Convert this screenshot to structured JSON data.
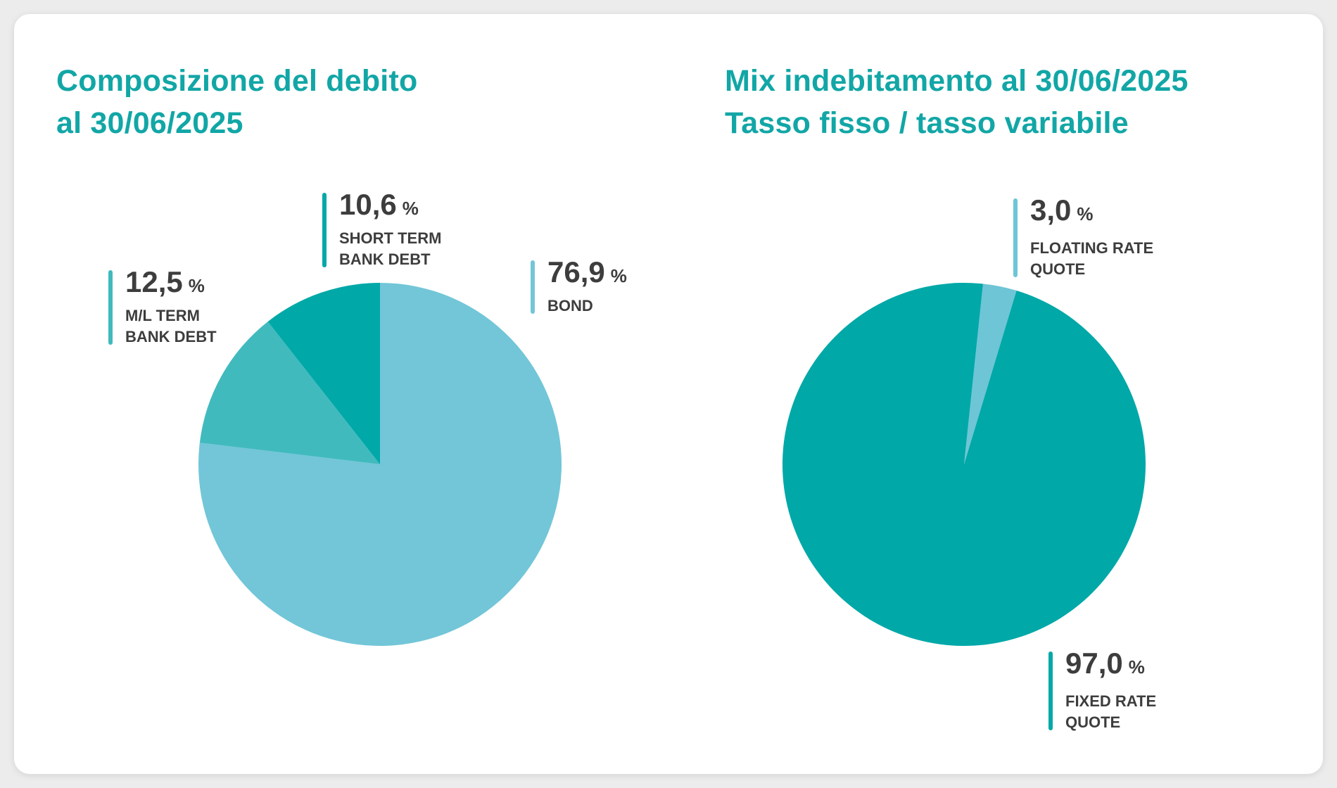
{
  "colors": {
    "background": "#ffffff",
    "title": "#12a6a6",
    "text": "#3d3d3d",
    "bond": "#72c6d8",
    "ml_term": "#41babe",
    "short_term": "#00a8a8",
    "fixed": "#00a8a8",
    "floating": "#6ec5d6"
  },
  "chart_data": [
    {
      "type": "pie",
      "title": [
        "Composizione del debito",
        "al 30/06/2025"
      ],
      "unit": "%",
      "slices": [
        {
          "label": [
            "BOND"
          ],
          "value": 76.9,
          "value_text": "76,9",
          "color": "#72c6d8"
        },
        {
          "label": [
            "M/L TERM",
            "BANK DEBT"
          ],
          "value": 12.5,
          "value_text": "12,5",
          "color": "#41babe"
        },
        {
          "label": [
            "SHORT TERM",
            "BANK DEBT"
          ],
          "value": 10.6,
          "value_text": "10,6",
          "color": "#00a8a8"
        }
      ]
    },
    {
      "type": "pie",
      "title": [
        "Mix indebitamento al 30/06/2025",
        "Tasso fisso / tasso variabile"
      ],
      "unit": "%",
      "slices": [
        {
          "label": [
            "FLOATING RATE",
            "QUOTE"
          ],
          "value": 3.0,
          "value_text": "3,0",
          "color": "#6ec5d6"
        },
        {
          "label": [
            "FIXED RATE",
            "QUOTE"
          ],
          "value": 97.0,
          "value_text": "97,0",
          "color": "#00a8a8"
        }
      ]
    }
  ]
}
